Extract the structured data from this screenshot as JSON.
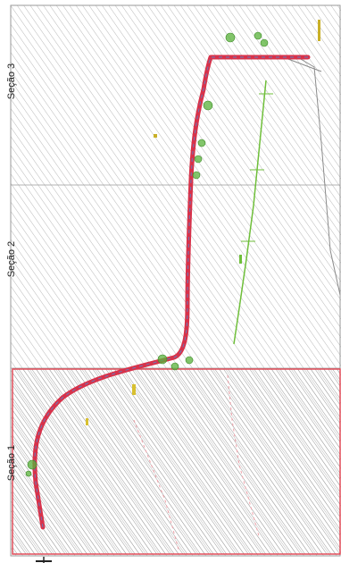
{
  "sections": [
    {
      "id": "s3",
      "label": "Seção 3"
    },
    {
      "id": "s2",
      "label": "Seção 2"
    },
    {
      "id": "s1",
      "label": "Seção 1"
    }
  ],
  "colors": {
    "hatch": "#b9b9b9",
    "frame": "#9a9a9a",
    "highlight_frame": "#e2424f",
    "route": "#d8324a",
    "route_inner": "#7a6fa8",
    "green_line": "#6fbf3a",
    "vegetation": "#58b13a",
    "grey_line": "#8b8b8b"
  }
}
